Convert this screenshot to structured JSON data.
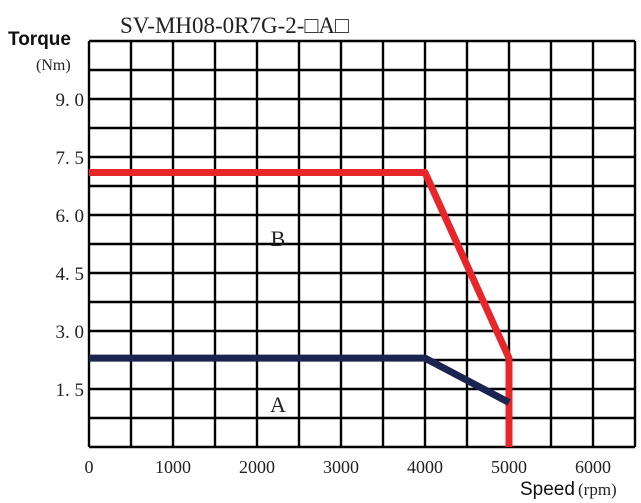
{
  "chart_data": {
    "type": "line",
    "title": "SV-MH08-0R7G-2-□A□",
    "ylabel": "Torque",
    "yunit": "(Nm)",
    "xlabel": "Speed",
    "xunit": "(rpm)",
    "xlim": [
      0,
      6500
    ],
    "ylim": [
      0,
      10.5
    ],
    "x_ticks": [
      0,
      1000,
      2000,
      3000,
      4000,
      5000,
      6000
    ],
    "x_tick_labels": [
      "0",
      "1000",
      "2000",
      "3000",
      "4000",
      "5000",
      "6000"
    ],
    "y_ticks": [
      1.5,
      3.0,
      4.5,
      6.0,
      7.5,
      9.0
    ],
    "y_tick_labels": [
      "1. 5",
      "3. 0",
      "4. 5",
      "6. 0",
      "7. 5",
      "9. 0"
    ],
    "grid": true,
    "series": [
      {
        "name": "B",
        "color": "#e8262a",
        "points": [
          [
            0,
            7.1
          ],
          [
            4000,
            7.1
          ],
          [
            5000,
            2.3
          ],
          [
            5000,
            0
          ]
        ]
      },
      {
        "name": "A",
        "color": "#1b2450",
        "points": [
          [
            0,
            2.3
          ],
          [
            4000,
            2.3
          ],
          [
            5000,
            1.15
          ]
        ]
      }
    ],
    "region_labels": [
      {
        "text": "B",
        "x": 2250,
        "y": 5.2
      },
      {
        "text": "A",
        "x": 2250,
        "y": 0.9
      }
    ]
  }
}
